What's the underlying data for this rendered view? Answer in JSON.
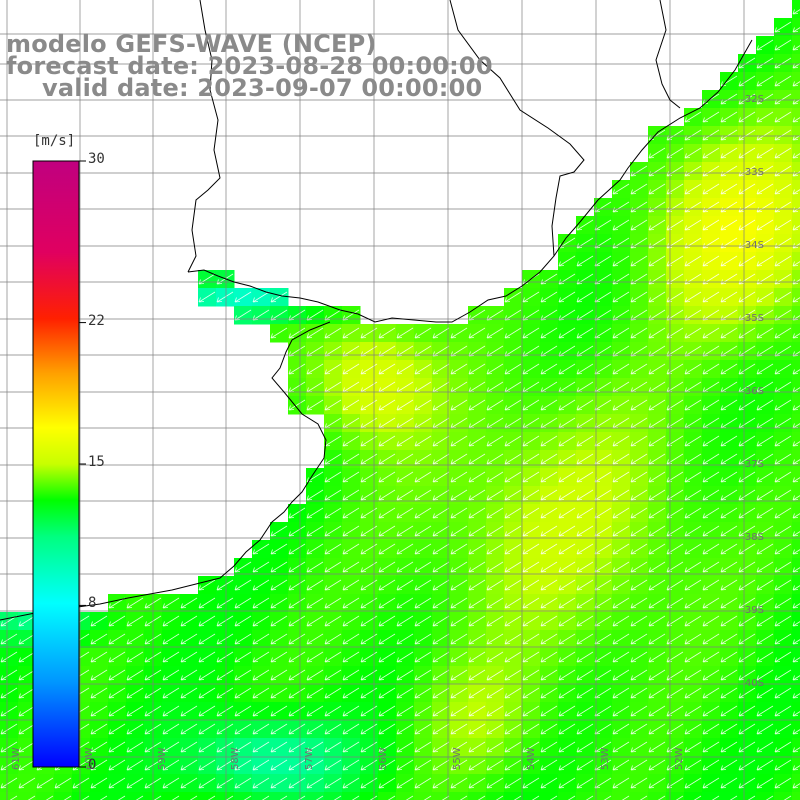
{
  "title": {
    "line1": "modelo GEFS-WAVE (NCEP)",
    "line2": "forecast date: 2023-08-28 00:00:00",
    "line3": "valid date: 2023-09-07 00:00:00"
  },
  "colorbar": {
    "unit": "[m/s]",
    "min": 0,
    "max": 30,
    "tick_labels": [
      "30",
      "22",
      "15",
      "8",
      "0"
    ],
    "tick_values": [
      30,
      22,
      15,
      8,
      0
    ]
  },
  "map": {
    "type": "heatmap",
    "variable": "wind speed with direction arrows",
    "lat_labels": [
      "32S",
      "33S",
      "34S",
      "35S",
      "36S",
      "37S",
      "38S",
      "39S",
      "40S"
    ],
    "lon_labels": [
      "61W",
      "60W",
      "59W",
      "58W",
      "57W",
      "56W",
      "55W",
      "54W",
      "53W",
      "52W"
    ],
    "arrow_direction": "toward south-west",
    "colors": {
      "land": "#ffffff",
      "coast": "#000000",
      "grid": "#7f7f7f",
      "arrows": "#ffffff",
      "title": "#8a8a8a"
    }
  }
}
